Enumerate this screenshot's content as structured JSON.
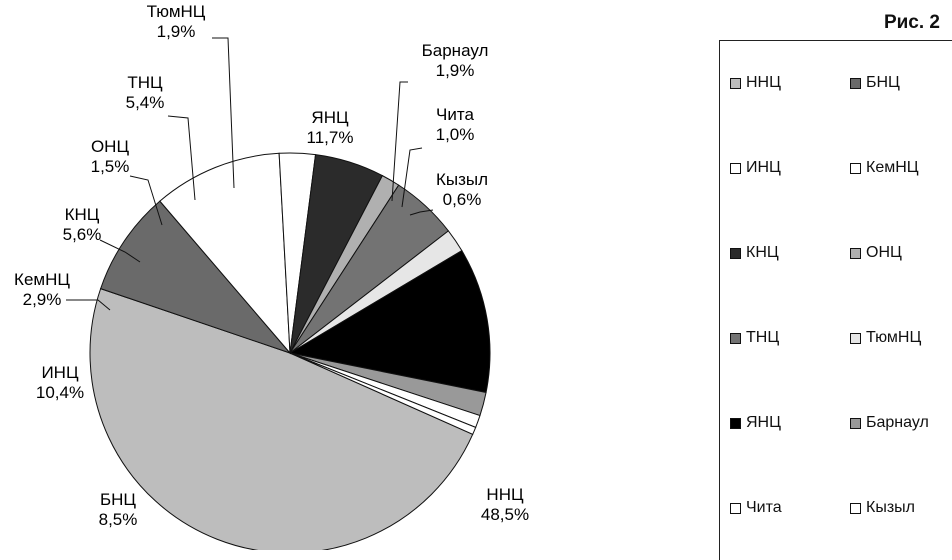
{
  "figure_label": "Рис. 2",
  "chart_data": {
    "type": "pie",
    "title": "",
    "slices": [
      {
        "name": "ННЦ",
        "value": 48.5,
        "label": "48,5%",
        "color": "#bdbdbd"
      },
      {
        "name": "БНЦ",
        "value": 8.5,
        "label": "8,5%",
        "color": "#6a6a6a"
      },
      {
        "name": "ИНЦ",
        "value": 10.4,
        "label": "10,4%",
        "color": "#ffffff"
      },
      {
        "name": "КемНЦ",
        "value": 2.9,
        "label": "2,9%",
        "color": "#ffffff"
      },
      {
        "name": "КНЦ",
        "value": 5.6,
        "label": "5,6%",
        "color": "#2b2b2b"
      },
      {
        "name": "ОНЦ",
        "value": 1.5,
        "label": "1,5%",
        "color": "#b0b0b0"
      },
      {
        "name": "ТНЦ",
        "value": 5.4,
        "label": "5,4%",
        "color": "#737373"
      },
      {
        "name": "ТюмНЦ",
        "value": 1.9,
        "label": "1,9%",
        "color": "#e6e6e6"
      },
      {
        "name": "ЯНЦ",
        "value": 11.7,
        "label": "11,7%",
        "color": "#000000"
      },
      {
        "name": "Барнаул",
        "value": 1.9,
        "label": "1,9%",
        "color": "#999999"
      },
      {
        "name": "Чита",
        "value": 1.0,
        "label": "1,0%",
        "color": "#ffffff"
      },
      {
        "name": "Кызыл",
        "value": 0.6,
        "label": "0,6%",
        "color": "#ffffff"
      }
    ],
    "legend": {
      "placement": "right",
      "items": [
        {
          "name": "ННЦ",
          "color": "#bdbdbd"
        },
        {
          "name": "БНЦ",
          "color": "#6a6a6a"
        },
        {
          "name": "ИНЦ",
          "color": "#ffffff"
        },
        {
          "name": "КемНЦ",
          "color": "#ffffff"
        },
        {
          "name": "КНЦ",
          "color": "#2b2b2b"
        },
        {
          "name": "ОНЦ",
          "color": "#b0b0b0"
        },
        {
          "name": "ТНЦ",
          "color": "#737373"
        },
        {
          "name": "ТюмНЦ",
          "color": "#e6e6e6"
        },
        {
          "name": "ЯНЦ",
          "color": "#000000"
        },
        {
          "name": "Барнаул",
          "color": "#999999"
        },
        {
          "name": "Чита",
          "color": "#ffffff"
        },
        {
          "name": "Кызыл",
          "color": "#ffffff"
        }
      ]
    }
  }
}
